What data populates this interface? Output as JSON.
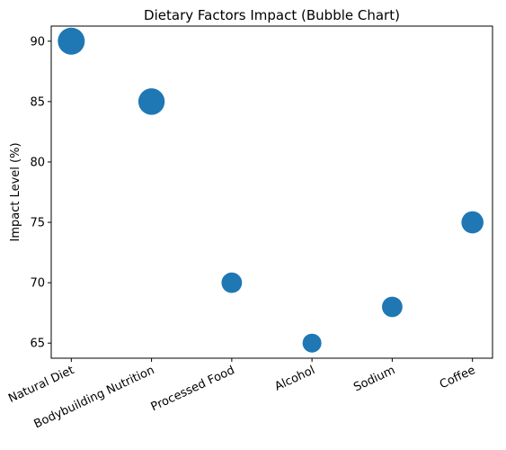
{
  "chart_data": {
    "type": "scatter",
    "title": "Dietary Factors Impact (Bubble Chart)",
    "xlabel": "",
    "ylabel": "Impact Level (%)",
    "categories": [
      "Natural Diet",
      "Bodybuilding Nutrition",
      "Processed Food",
      "Alcohol",
      "Sodium",
      "Coffee"
    ],
    "values": [
      90,
      85,
      70,
      65,
      68,
      75
    ],
    "bubble_relative_size": [
      1.0,
      0.98,
      0.76,
      0.7,
      0.76,
      0.82
    ],
    "yticks": [
      65,
      70,
      75,
      80,
      85,
      90
    ],
    "ylim": [
      63.75,
      91.25
    ],
    "color": "#1f77b4",
    "grid": false,
    "legend": "none"
  }
}
